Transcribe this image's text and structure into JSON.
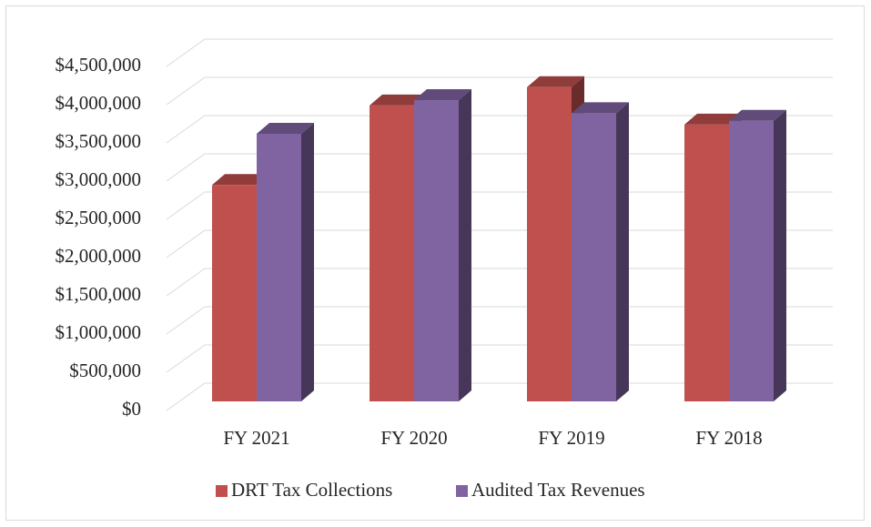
{
  "chart_data": {
    "type": "bar",
    "categories": [
      "FY 2021",
      "FY 2020",
      "FY 2019",
      "FY 2018"
    ],
    "series": [
      {
        "name": "DRT Tax Collections",
        "color": "#c0504d",
        "values": [
          2830000,
          3870000,
          4110000,
          3620000
        ]
      },
      {
        "name": "Audited Tax Revenues",
        "color": "#8064a2",
        "values": [
          3500000,
          3940000,
          3770000,
          3670000
        ]
      }
    ],
    "ylim": [
      0,
      4500000
    ],
    "yticks": [
      {
        "value": 0,
        "label": "$0"
      },
      {
        "value": 500000,
        "label": "$500,000"
      },
      {
        "value": 1000000,
        "label": "$1,000,000"
      },
      {
        "value": 1500000,
        "label": "$1,500,000"
      },
      {
        "value": 2000000,
        "label": "$2,000,000"
      },
      {
        "value": 2500000,
        "label": "$2,500,000"
      },
      {
        "value": 3000000,
        "label": "$3,000,000"
      },
      {
        "value": 3500000,
        "label": "$3,500,000"
      },
      {
        "value": 4000000,
        "label": "$4,000,000"
      },
      {
        "value": 4500000,
        "label": "$4,500,000"
      }
    ],
    "grid": true,
    "legend": "bottom"
  }
}
